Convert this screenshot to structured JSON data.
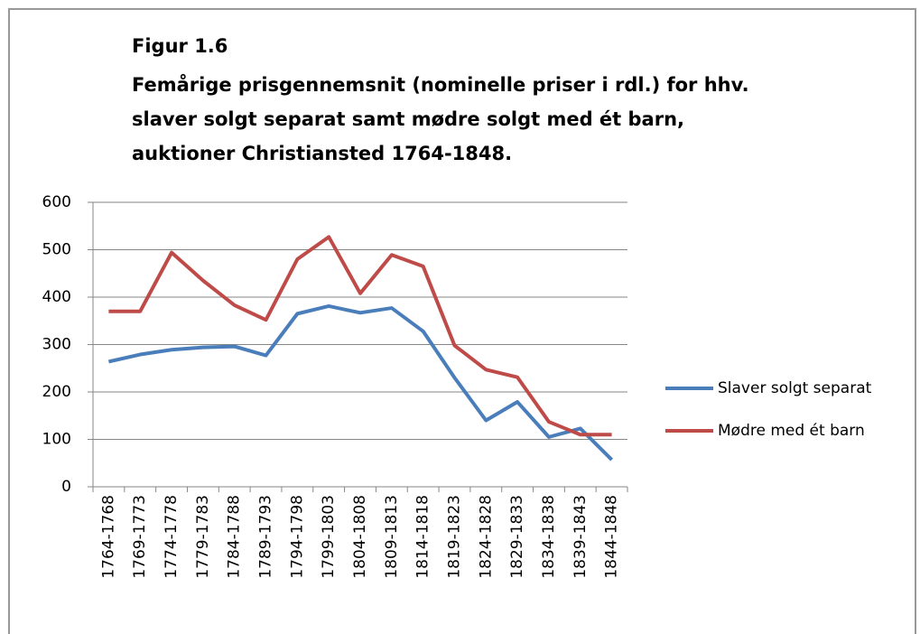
{
  "chart_data": {
    "type": "line",
    "title": "Figur 1.6",
    "subtitle": [
      "Femårige prisgennemsnit (nominelle priser i rdl.) for hhv.",
      "slaver solgt separat samt mødre solgt med ét barn,",
      "auktioner Christiansted 1764-1848."
    ],
    "categories": [
      "1764-1768",
      "1769-1773",
      "1774-1778",
      "1779-1783",
      "1784-1788",
      "1789-1793",
      "1794-1798",
      "1799-1803",
      "1804-1808",
      "1809-1813",
      "1814-1818",
      "1819-1823",
      "1824-1828",
      "1829-1833",
      "1834-1838",
      "1839-1843",
      "1844-1848"
    ],
    "series": [
      {
        "name": "Slaver solgt separat",
        "color": "#4a7ebb",
        "values": [
          264,
          279,
          289,
          294,
          296,
          277,
          365,
          381,
          367,
          377,
          328,
          230,
          140,
          179,
          105,
          123,
          57
        ]
      },
      {
        "name": "Mødre med ét barn",
        "color": "#be4b48",
        "values": [
          370,
          370,
          494,
          435,
          383,
          352,
          480,
          527,
          408,
          489,
          465,
          298,
          247,
          231,
          137,
          110,
          110
        ]
      }
    ],
    "ylim": [
      0,
      600
    ],
    "yticks": [
      0,
      100,
      200,
      300,
      400,
      500,
      600
    ],
    "grid": true,
    "legend": "right"
  }
}
